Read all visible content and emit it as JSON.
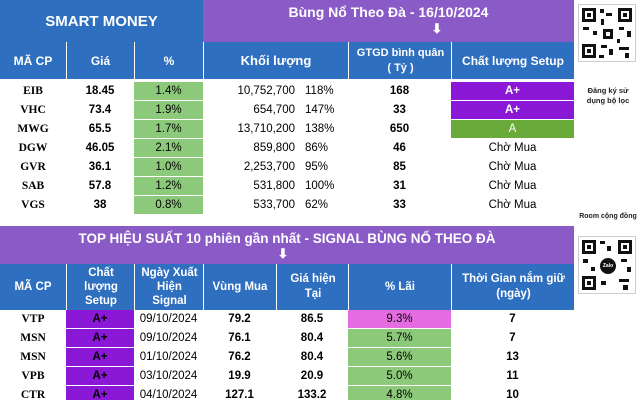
{
  "top": {
    "brand": "SMART MONEY",
    "title": "Bùng Nổ Theo Đà - 16/10/2024",
    "columns": [
      "MÃ CP",
      "Giá",
      "%",
      "Khối lượng",
      "GTGD bình quân ( Tỷ )",
      "Chất lượng Setup"
    ],
    "gtgd_line1": "GTGD bình quân",
    "gtgd_line2": "( Tỷ )",
    "rows": [
      {
        "sym": "EIB",
        "price": "18.45",
        "pct": "1.4%",
        "vol": "10,752,700",
        "volpct": "118%",
        "gtgd": "168",
        "quality": "A+"
      },
      {
        "sym": "VHC",
        "price": "73.4",
        "pct": "1.9%",
        "vol": "654,700",
        "volpct": "147%",
        "gtgd": "33",
        "quality": "A+"
      },
      {
        "sym": "MWG",
        "price": "65.5",
        "pct": "1.7%",
        "vol": "13,710,200",
        "volpct": "138%",
        "gtgd": "650",
        "quality": "A"
      },
      {
        "sym": "DGW",
        "price": "46.05",
        "pct": "2.1%",
        "vol": "859,800",
        "volpct": "86%",
        "gtgd": "46",
        "quality": "Chờ Mua"
      },
      {
        "sym": "GVR",
        "price": "36.1",
        "pct": "1.0%",
        "vol": "2,253,700",
        "volpct": "95%",
        "gtgd": "85",
        "quality": "Chờ Mua"
      },
      {
        "sym": "SAB",
        "price": "57.8",
        "pct": "1.2%",
        "vol": "531,800",
        "volpct": "100%",
        "gtgd": "31",
        "quality": "Chờ Mua"
      },
      {
        "sym": "VGS",
        "price": "38",
        "pct": "0.8%",
        "vol": "533,700",
        "volpct": "62%",
        "gtgd": "33",
        "quality": "Chờ Mua"
      }
    ]
  },
  "bottom": {
    "title": "TOP HIỆU SUẤT 10 phiên gần nhất  - SIGNAL BÙNG NỔ THEO ĐÀ",
    "columns": {
      "sym": "MÃ CP",
      "quality_l1": "Chất",
      "quality_l2": "lượng",
      "quality_l3": "Setup",
      "date_l1": "Ngày Xuất",
      "date_l2": "Hiện",
      "date_l3": "Signal",
      "buy": "Vùng Mua",
      "price_l1": "Giá hiện",
      "price_l2": "Tại",
      "gain": "% Lãi",
      "hold_l1": "Thời Gian nắm giữ",
      "hold_l2": "(ngày)"
    },
    "rows": [
      {
        "sym": "VTP",
        "quality": "A+",
        "date": "09/10/2024",
        "buy": "79.2",
        "price": "86.5",
        "gain": "9.3%",
        "hold": "7"
      },
      {
        "sym": "MSN",
        "quality": "A+",
        "date": "09/10/2024",
        "buy": "76.1",
        "price": "80.4",
        "gain": "5.7%",
        "hold": "7"
      },
      {
        "sym": "MSN",
        "quality": "A+",
        "date": "01/10/2024",
        "buy": "76.2",
        "price": "80.4",
        "gain": "5.6%",
        "hold": "13"
      },
      {
        "sym": "VPB",
        "quality": "A+",
        "date": "03/10/2024",
        "buy": "19.9",
        "price": "20.9",
        "gain": "5.0%",
        "hold": "11"
      },
      {
        "sym": "CTR",
        "quality": "A+",
        "date": "04/10/2024",
        "buy": "127.1",
        "price": "133.2",
        "gain": "4.8%",
        "hold": "10"
      }
    ]
  },
  "side": {
    "signup_note": "Đăng ký sử dụng bộ lọc",
    "room_note": "Room cộng đồng",
    "qr_center": "Zalo"
  },
  "colors": {
    "header_blue": "#2f6fbf",
    "header_purple": "#8a5bc6",
    "a_plus_purple": "#8a18d6",
    "grade_a_green": "#6aaa3a",
    "pct_green": "#8dc97a",
    "top_gain_pink": "#e56ce0"
  }
}
